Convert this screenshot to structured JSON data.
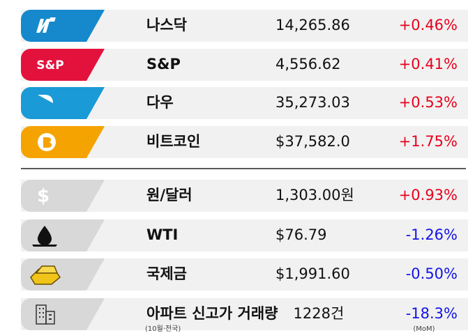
{
  "indices": [
    {
      "name": "나스닥",
      "value": "14,265.86",
      "change": "+0.46%",
      "color": "#e8001c"
    },
    {
      "name": "S&P",
      "value": "4,556.62",
      "change": "+0.41%",
      "color": "#e8001c",
      "icon_text": "S&P"
    },
    {
      "name": "다우",
      "value": "35,273.03",
      "change": "+0.53%",
      "color": "#e8001c"
    },
    {
      "name": "비트코인",
      "value": "$37,582.0",
      "change": "+1.75%",
      "color": "#e8001c"
    }
  ],
  "assets": [
    {
      "name": "원/달러",
      "value": "1,303.00원",
      "change": "+0.93%",
      "color": "#e8001c",
      "icon_text": "$"
    },
    {
      "name": "WTI",
      "value": "$76.79",
      "change": "-1.26%",
      "color": "#1414e6"
    },
    {
      "name": "국제금",
      "value": "$1,991.60",
      "change": "-0.50%",
      "color": "#1414e6"
    },
    {
      "name": "아파트 신고가 거래량",
      "value": "1228건",
      "change": "-18.3%",
      "color": "#1414e6",
      "note": "(10월·전국)",
      "change_note": "(MoM)"
    }
  ]
}
